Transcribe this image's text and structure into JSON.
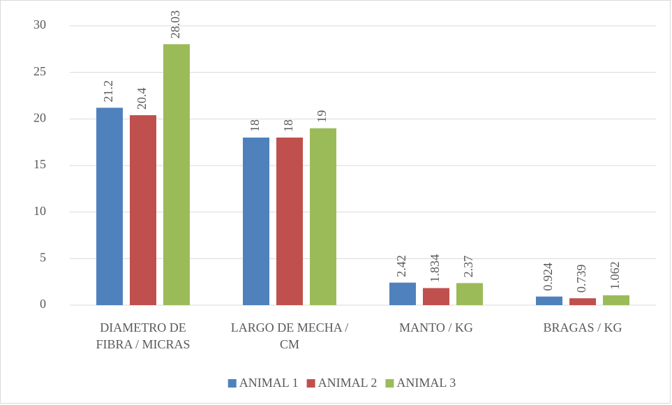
{
  "chart_data": {
    "type": "bar",
    "categories": [
      "DIAMETRO DE FIBRA / MICRAS",
      "LARGO DE MECHA / CM",
      "MANTO / KG",
      "BRAGAS / KG"
    ],
    "series": [
      {
        "name": "ANIMAL 1",
        "color": "#4f81bd",
        "values": [
          21.2,
          18,
          2.42,
          0.924
        ]
      },
      {
        "name": "ANIMAL 2",
        "color": "#c0504d",
        "values": [
          20.4,
          18,
          1.834,
          0.739
        ]
      },
      {
        "name": "ANIMAL 3",
        "color": "#9bbb59",
        "values": [
          28.03,
          19,
          2.37,
          1.062
        ]
      }
    ],
    "ylim": [
      0,
      30
    ],
    "yticks": [
      0,
      5,
      10,
      15,
      20,
      25,
      30
    ],
    "grid": true,
    "legend": "bottom"
  }
}
